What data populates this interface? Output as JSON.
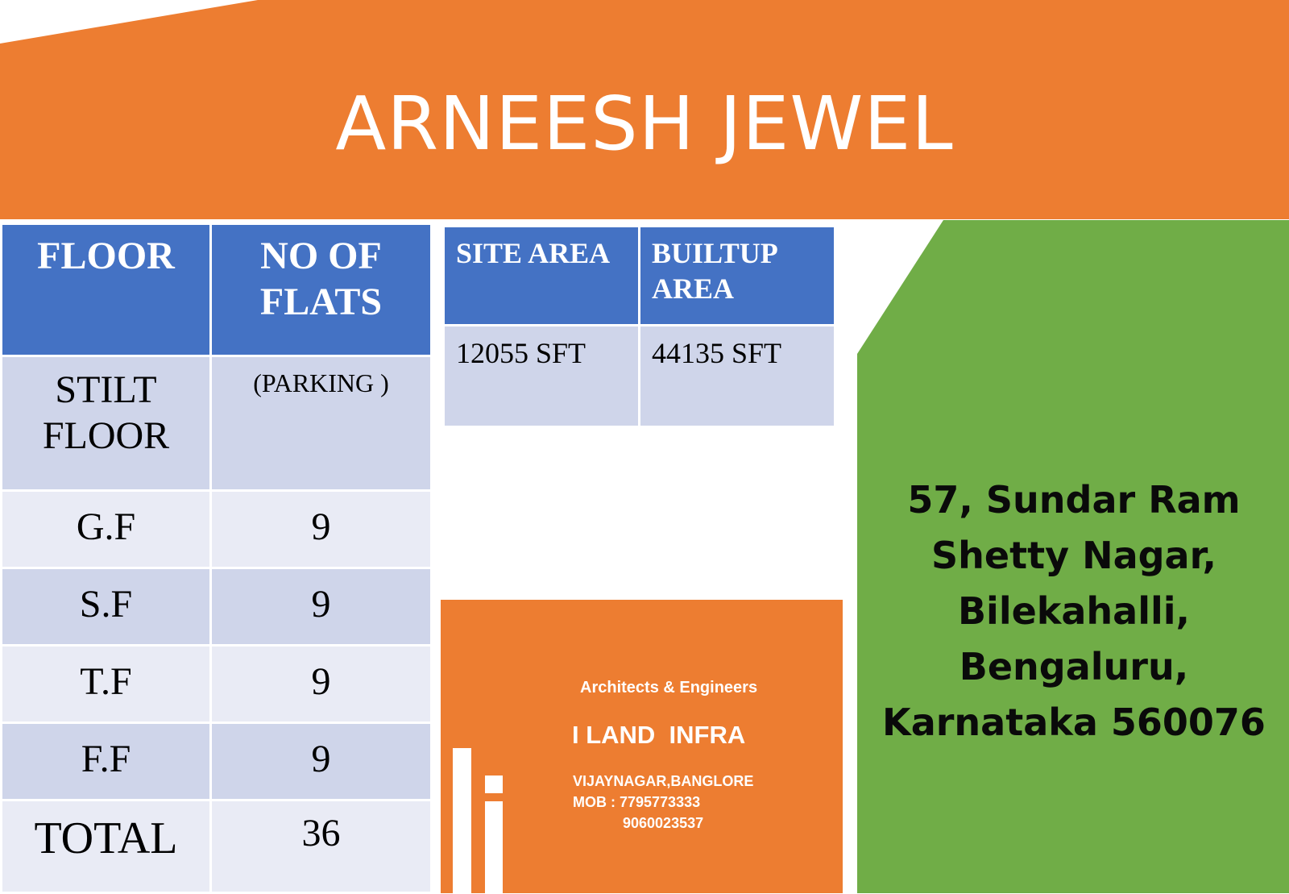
{
  "header": {
    "title": "ARNEESH JEWEL",
    "color": "#ed7d31"
  },
  "floor_table": {
    "headers": [
      "FLOOR",
      "NO OF FLATS"
    ],
    "rows": [
      {
        "floor": "STILT FLOOR",
        "flats": "(PARKING )"
      },
      {
        "floor": "G.F",
        "flats": "9"
      },
      {
        "floor": "S.F",
        "flats": "9"
      },
      {
        "floor": "T.F",
        "flats": "9"
      },
      {
        "floor": "F.F",
        "flats": "9"
      },
      {
        "floor": "TOTAL",
        "flats": "36"
      }
    ],
    "header_color": "#4472c4",
    "total_color": "#e00000"
  },
  "area_table": {
    "headers": [
      "SITE AREA",
      "BUILTUP AREA"
    ],
    "values": [
      "12055 SFT",
      "44135 SFT"
    ]
  },
  "company": {
    "tagline": "Architects & Engineers",
    "name": "I LAND  INFRA",
    "location": "VIJAYNAGAR,BANGLORE",
    "mobile_1": "MOB : 7795773333",
    "mobile_2": "9060023537",
    "logo_icon": "il-logo-icon"
  },
  "address": {
    "lines": [
      "57, Sundar Ram",
      "Shetty Nagar,",
      "Bilekahalli,",
      "Bengaluru,",
      "Karnataka 560076"
    ],
    "panel_color": "#70ad47"
  }
}
